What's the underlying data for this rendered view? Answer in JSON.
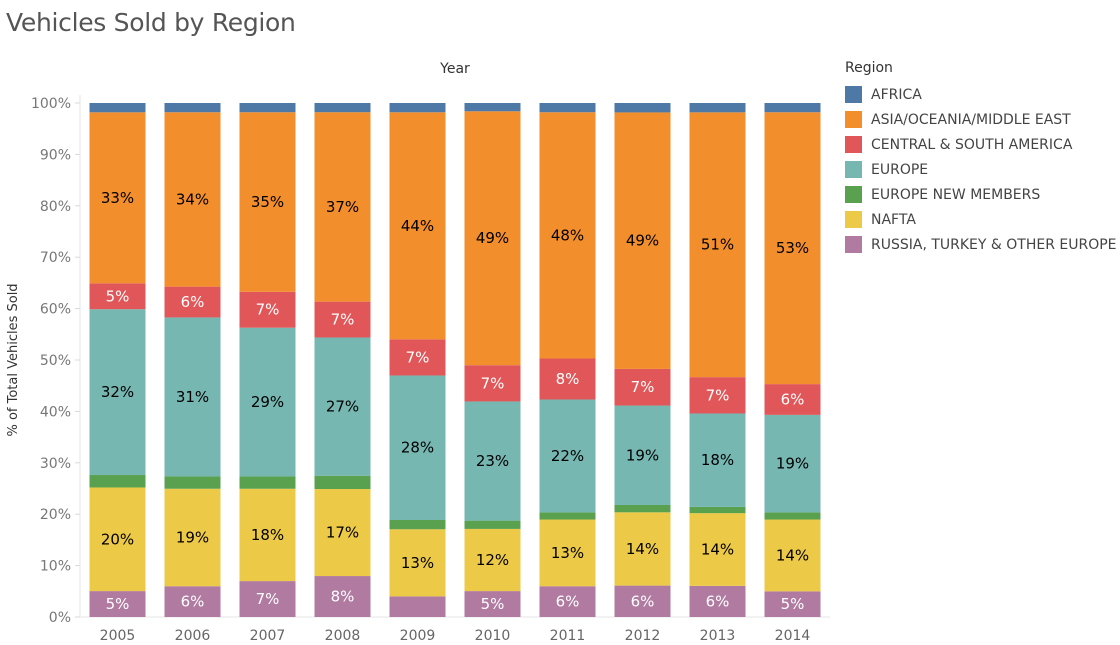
{
  "chart_data": {
    "type": "bar",
    "stacked": true,
    "percent_stacked": true,
    "title": "Vehicles Sold by Region",
    "column_header": "Year",
    "ylabel": "% of Total Vehicles Sold",
    "ylim": [
      0,
      100
    ],
    "y_ticks": [
      "0%",
      "10%",
      "20%",
      "30%",
      "40%",
      "50%",
      "60%",
      "70%",
      "80%",
      "90%",
      "100%"
    ],
    "grid": false,
    "legend_title": "Region",
    "legend_position": "right",
    "categories": [
      "2005",
      "2006",
      "2007",
      "2008",
      "2009",
      "2010",
      "2011",
      "2012",
      "2013",
      "2014"
    ],
    "series": [
      {
        "name": "RUSSIA, TURKEY & OTHER EUROPE",
        "color": "#b07aa1",
        "label_color": "#ffffff",
        "values": [
          5,
          6,
          7,
          8,
          4,
          5,
          6,
          6,
          6,
          5
        ],
        "labels": [
          "5%",
          "6%",
          "7%",
          "8%",
          "",
          "5%",
          "6%",
          "6%",
          "6%",
          "5%"
        ]
      },
      {
        "name": "NAFTA",
        "color": "#edc948",
        "label_color": "#000000",
        "values": [
          20,
          19,
          18,
          17,
          13,
          12,
          13,
          14,
          14,
          14
        ],
        "labels": [
          "20%",
          "19%",
          "18%",
          "17%",
          "13%",
          "12%",
          "13%",
          "14%",
          "14%",
          "14%"
        ]
      },
      {
        "name": "EUROPE NEW MEMBERS",
        "color": "#59a14f",
        "label_color": "#ffffff",
        "values": [
          2.4,
          2.4,
          2.4,
          2.6,
          1.8,
          1.6,
          1.4,
          1.4,
          1.2,
          1.4
        ],
        "labels": [
          "",
          "",
          "",
          "",
          "",
          "",
          "",
          "",
          "",
          ""
        ]
      },
      {
        "name": "EUROPE",
        "color": "#76b7b2",
        "label_color": "#000000",
        "values": [
          32,
          31,
          29,
          27,
          28,
          23,
          22,
          19,
          18,
          19
        ],
        "labels": [
          "32%",
          "31%",
          "29%",
          "27%",
          "28%",
          "23%",
          "22%",
          "19%",
          "18%",
          "19%"
        ]
      },
      {
        "name": "CENTRAL & SOUTH AMERICA",
        "color": "#e15759",
        "label_color": "#ffffff",
        "values": [
          5,
          6,
          7,
          7,
          7,
          7,
          8,
          7,
          7,
          6
        ],
        "labels": [
          "5%",
          "6%",
          "7%",
          "7%",
          "7%",
          "7%",
          "8%",
          "7%",
          "7%",
          "6%"
        ]
      },
      {
        "name": "ASIA/OCEANIA/MIDDLE EAST",
        "color": "#f28e2b",
        "label_color": "#000000",
        "values": [
          33,
          34,
          35,
          37,
          44,
          49,
          48,
          49,
          51,
          53
        ],
        "labels": [
          "33%",
          "34%",
          "35%",
          "37%",
          "44%",
          "49%",
          "48%",
          "49%",
          "51%",
          "53%"
        ]
      },
      {
        "name": "AFRICA",
        "color": "#4e79a7",
        "label_color": "#ffffff",
        "values": [
          1.8,
          1.8,
          1.8,
          1.8,
          1.8,
          1.6,
          1.8,
          1.8,
          1.8,
          1.8
        ],
        "labels": [
          "",
          "",
          "",
          "",
          "",
          "",
          "",
          "",
          "",
          ""
        ]
      }
    ],
    "legend_order": [
      "AFRICA",
      "ASIA/OCEANIA/MIDDLE EAST",
      "CENTRAL & SOUTH AMERICA",
      "EUROPE",
      "EUROPE NEW MEMBERS",
      "NAFTA",
      "RUSSIA, TURKEY & OTHER EUROPE"
    ]
  }
}
